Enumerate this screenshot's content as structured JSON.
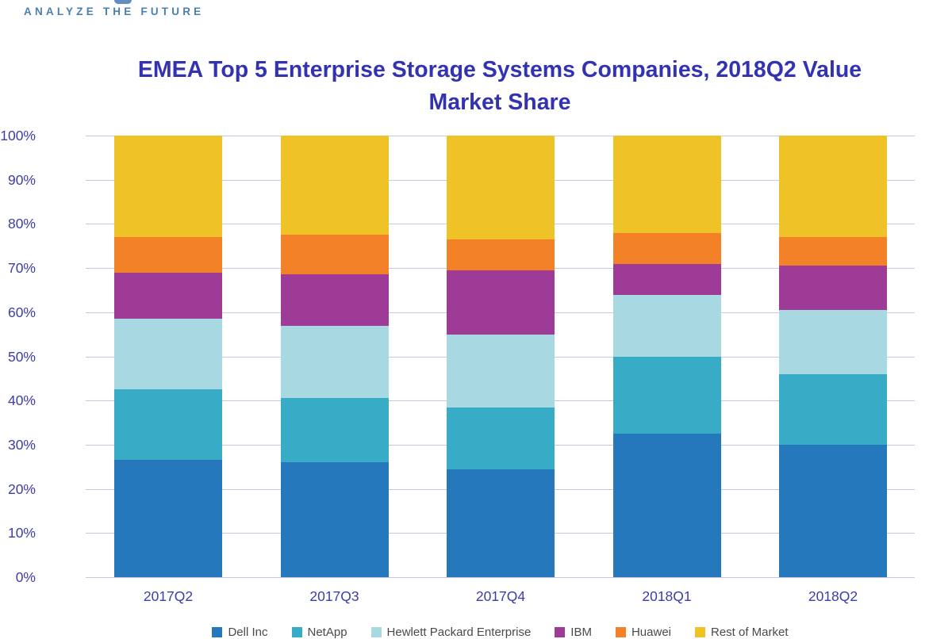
{
  "brand": {
    "tagline": "ANALYZE THE FUTURE"
  },
  "chart_data": {
    "type": "bar",
    "stacked": true,
    "title": "EMEA Top 5 Enterprise Storage Systems Companies, 2018Q2 Value Market Share",
    "categories": [
      "2017Q2",
      "2017Q3",
      "2017Q4",
      "2018Q1",
      "2018Q2"
    ],
    "series": [
      {
        "name": "Dell Inc",
        "color": "#2578bc",
        "values": [
          26.5,
          26.0,
          24.5,
          32.5,
          30.0
        ]
      },
      {
        "name": "NetApp",
        "color": "#38acc6",
        "values": [
          16.0,
          14.5,
          14.0,
          17.5,
          16.0
        ]
      },
      {
        "name": "Hewlett Packard Enterprise",
        "color": "#a8d8e2",
        "values": [
          16.0,
          16.5,
          16.5,
          14.0,
          14.5
        ]
      },
      {
        "name": "IBM",
        "color": "#9e3b97",
        "values": [
          10.5,
          11.5,
          14.5,
          7.0,
          10.0
        ]
      },
      {
        "name": "Huawei",
        "color": "#f28127",
        "values": [
          8.0,
          9.0,
          7.0,
          7.0,
          6.5
        ]
      },
      {
        "name": "Rest of Market",
        "color": "#efc228",
        "values": [
          23.0,
          22.5,
          23.5,
          22.0,
          23.0
        ]
      }
    ],
    "xlabel": "",
    "ylabel": "",
    "ylim": [
      0,
      100
    ],
    "ytick_step": 10,
    "ytick_labels": [
      "0%",
      "10%",
      "20%",
      "30%",
      "40%",
      "50%",
      "60%",
      "70%",
      "80%",
      "90%",
      "100%"
    ],
    "grid": true,
    "legend_position": "bottom",
    "colors": {
      "title_text": "#3333b2",
      "axis_text": "#3d3da8",
      "gridline": "#c6c6e8",
      "tagline_text": "#4a7fb4"
    }
  }
}
